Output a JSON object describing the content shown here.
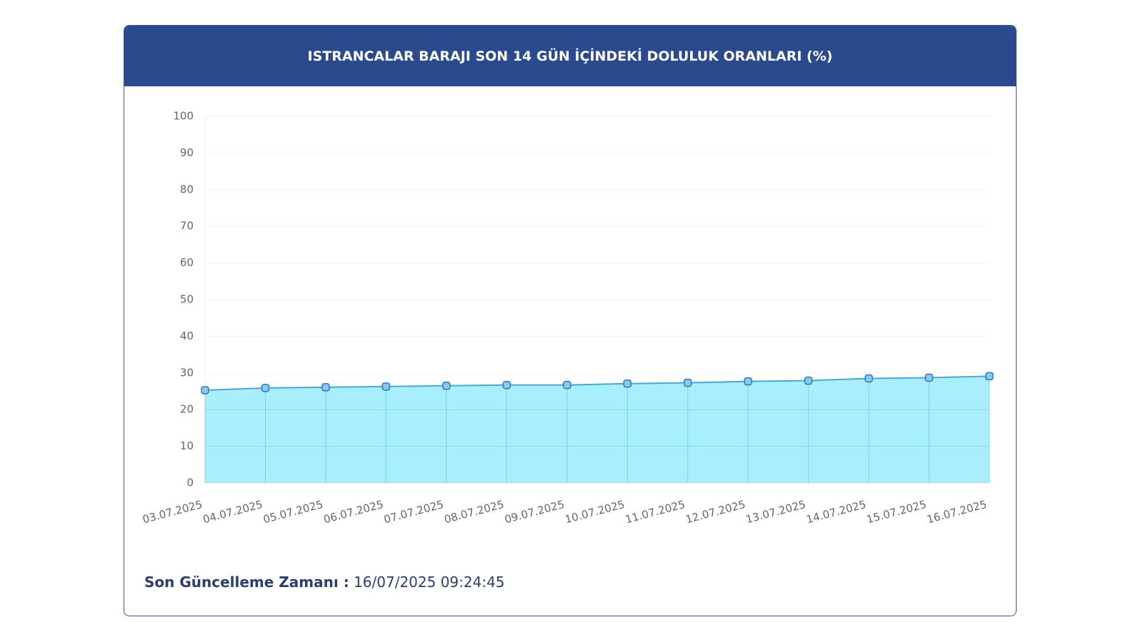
{
  "chart_data": {
    "type": "area",
    "title": "ISTRANCALAR BARAJI SON 14 GÜN İÇİNDEKİ DOLULUK ORANLARI (%)",
    "categories": [
      "03.07.2025",
      "04.07.2025",
      "05.07.2025",
      "06.07.2025",
      "07.07.2025",
      "08.07.2025",
      "09.07.2025",
      "10.07.2025",
      "11.07.2025",
      "12.07.2025",
      "13.07.2025",
      "14.07.2025",
      "15.07.2025",
      "16.07.2025"
    ],
    "values": [
      25.3,
      25.9,
      26.1,
      26.3,
      26.5,
      26.7,
      26.7,
      27.1,
      27.3,
      27.7,
      27.9,
      28.5,
      28.7,
      29.1
    ],
    "color": "#4aa8d0",
    "fill": "#a8eefc",
    "ylim": [
      0,
      100
    ],
    "yticks": [
      0,
      10,
      20,
      30,
      40,
      50,
      60,
      70,
      80,
      90,
      100
    ],
    "grid": true
  },
  "footer": {
    "label": "Son Güncelleme Zamanı :",
    "value": "16/07/2025 09:24:45"
  }
}
